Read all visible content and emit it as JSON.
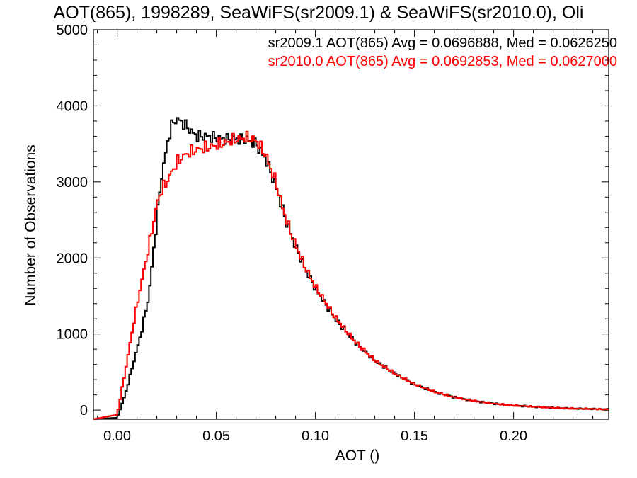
{
  "chart_data": {
    "type": "line",
    "title": "AOT(865), 1998289, SeaWiFS(sr2009.1) & SeaWiFS(sr2010.0), Oli",
    "xlabel": "AOT ()",
    "ylabel": "Number of Observations",
    "xlim": [
      -0.012,
      0.248
    ],
    "ylim": [
      -120,
      5000
    ],
    "xticks": [
      0.0,
      0.05,
      0.1,
      0.15,
      0.2
    ],
    "xtick_labels": [
      "0.00",
      "0.05",
      "0.10",
      "0.15",
      "0.20"
    ],
    "yticks": [
      0,
      1000,
      2000,
      3000,
      4000,
      5000
    ],
    "ytick_labels": [
      "0",
      "1000",
      "2000",
      "3000",
      "4000",
      "5000"
    ],
    "legend_position": "top-right",
    "stats": [
      {
        "text": "sr2009.1 AOT(865) Avg = 0.0696888, Med = 0.0626250",
        "color": "#000000"
      },
      {
        "text": "sr2010.0 AOT(865) Avg = 0.0692853, Med = 0.0627000",
        "color": "#ff0000"
      }
    ],
    "series": [
      {
        "color": "#000000",
        "x": [
          -0.012,
          0.0,
          0.004,
          0.008,
          0.012,
          0.016,
          0.02,
          0.022,
          0.024,
          0.026,
          0.028,
          0.03,
          0.032,
          0.034,
          0.036,
          0.038,
          0.04,
          0.045,
          0.05,
          0.055,
          0.06,
          0.065,
          0.07,
          0.075,
          0.08,
          0.085,
          0.09,
          0.095,
          0.1,
          0.105,
          0.11,
          0.12,
          0.13,
          0.14,
          0.15,
          0.16,
          0.17,
          0.18,
          0.19,
          0.2,
          0.21,
          0.22,
          0.23,
          0.24,
          0.248
        ],
        "y": [
          -120,
          -100,
          200,
          600,
          1000,
          1500,
          2500,
          3000,
          3300,
          3600,
          3780,
          3820,
          3800,
          3750,
          3700,
          3650,
          3600,
          3600,
          3580,
          3560,
          3560,
          3560,
          3500,
          3300,
          2950,
          2500,
          2150,
          1850,
          1600,
          1400,
          1200,
          900,
          650,
          480,
          340,
          240,
          170,
          120,
          85,
          60,
          45,
          30,
          20,
          15,
          10
        ]
      },
      {
        "color": "#ff0000",
        "x": [
          -0.012,
          0.0,
          0.004,
          0.008,
          0.012,
          0.016,
          0.02,
          0.022,
          0.024,
          0.026,
          0.028,
          0.03,
          0.032,
          0.034,
          0.036,
          0.038,
          0.04,
          0.045,
          0.05,
          0.055,
          0.06,
          0.065,
          0.07,
          0.075,
          0.08,
          0.085,
          0.09,
          0.095,
          0.1,
          0.105,
          0.11,
          0.12,
          0.13,
          0.14,
          0.15,
          0.16,
          0.17,
          0.18,
          0.19,
          0.2,
          0.21,
          0.22,
          0.23,
          0.24,
          0.248
        ],
        "y": [
          -120,
          -60,
          500,
          1100,
          1650,
          2150,
          2700,
          2870,
          2950,
          3050,
          3150,
          3250,
          3300,
          3350,
          3380,
          3400,
          3420,
          3450,
          3480,
          3520,
          3560,
          3580,
          3550,
          3350,
          3000,
          2520,
          2170,
          1870,
          1620,
          1420,
          1220,
          900,
          650,
          480,
          340,
          240,
          170,
          120,
          85,
          60,
          45,
          30,
          20,
          15,
          10
        ]
      }
    ]
  }
}
